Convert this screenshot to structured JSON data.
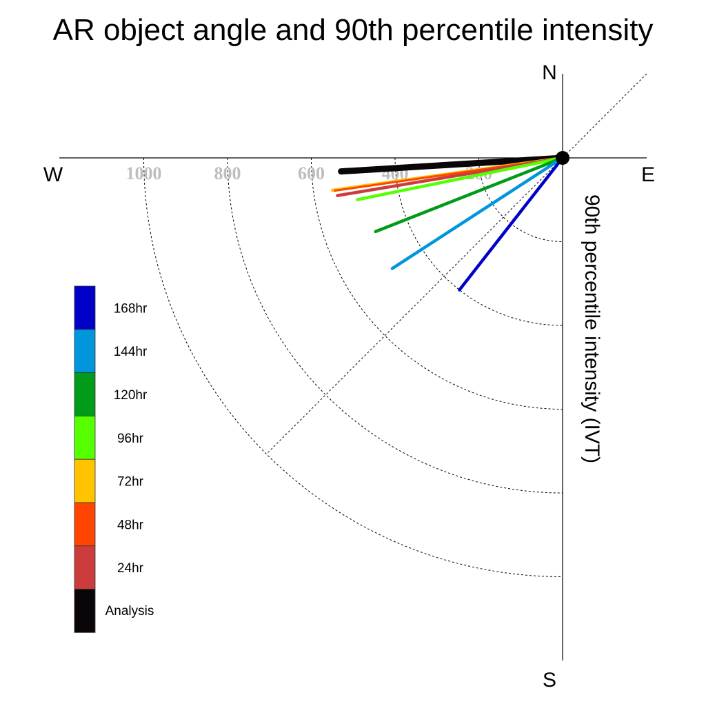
{
  "chart_data": {
    "type": "polar-vector",
    "title": "AR object angle and 90th percentile intensity",
    "radial_label": "90th percentile intensity (IVT)",
    "compass": {
      "north": "N",
      "south": "S",
      "east": "E",
      "west": "W"
    },
    "radial_ticks": [
      200,
      400,
      600,
      800,
      1000
    ],
    "radial_tick_labels": [
      "200",
      "400",
      "600",
      "800",
      "1000"
    ],
    "radial_max": 1200,
    "grid": true,
    "legend_position": "left",
    "series": [
      {
        "name": "Analysis",
        "color": "#0a0509",
        "angle_deg": 266.5,
        "intensity": 530,
        "line_width": 9
      },
      {
        "name": "72hr",
        "color": "#ffc300",
        "angle_deg": 262.0,
        "intensity": 555,
        "line_width": 4.5
      },
      {
        "name": "48hr",
        "color": "#ff4500",
        "angle_deg": 261.8,
        "intensity": 550,
        "line_width": 3
      },
      {
        "name": "24hr",
        "color": "#cd3c3c",
        "angle_deg": 260.5,
        "intensity": 545,
        "line_width": 4.5
      },
      {
        "name": "96hr",
        "color": "#55ff00",
        "angle_deg": 258.5,
        "intensity": 500,
        "line_width": 4.5
      },
      {
        "name": "120hr",
        "color": "#009b19",
        "angle_deg": 248.5,
        "intensity": 480,
        "line_width": 4.5
      },
      {
        "name": "144hr",
        "color": "#0096dc",
        "angle_deg": 237.0,
        "intensity": 485,
        "line_width": 4.5
      },
      {
        "name": "168hr",
        "color": "#0000c8",
        "angle_deg": 218.0,
        "intensity": 400,
        "line_width": 4.5
      }
    ],
    "legend_order": [
      "168hr",
      "144hr",
      "120hr",
      "96hr",
      "72hr",
      "48hr",
      "24hr",
      "Analysis"
    ]
  }
}
